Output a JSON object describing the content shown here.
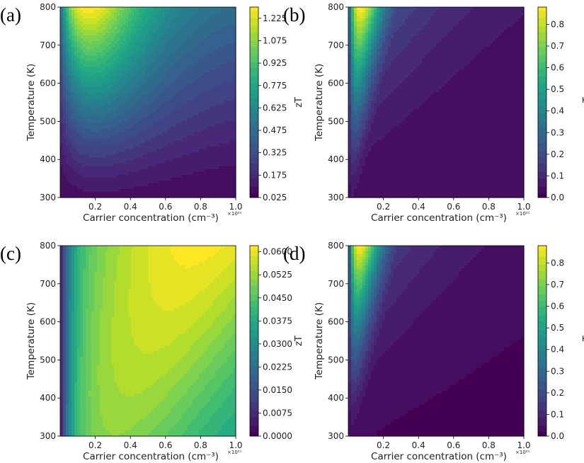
{
  "chart_data": [
    {
      "type": "heatmap",
      "panel_label": "(a)",
      "xlabel": "Carrier concentration (cm⁻³)",
      "ylabel": "Temperature (K)",
      "colorbar_label": "zT",
      "x_multiplier": "×10²¹",
      "xlim": [
        0.0,
        1.0
      ],
      "ylim": [
        300,
        800
      ],
      "x_ticks": [
        "0.2",
        "0.4",
        "0.6",
        "0.8",
        "1.0"
      ],
      "y_ticks": [
        "300",
        "400",
        "500",
        "600",
        "700",
        "800"
      ],
      "colorbar_range": [
        0.025,
        1.3
      ],
      "colorbar_ticks": [
        "0.025",
        "0.175",
        "0.325",
        "0.475",
        "0.625",
        "0.775",
        "0.925",
        "1.075",
        "1.225"
      ],
      "colormap": "viridis",
      "peak": {
        "x": 0.18,
        "y": 800,
        "value": 1.3
      }
    },
    {
      "type": "heatmap",
      "panel_label": "(b)",
      "xlabel": "Carrier concentration (cm⁻³)",
      "ylabel": "Temperature (K)",
      "colorbar_label": "zT",
      "x_multiplier": "×10²¹",
      "xlim": [
        0.0,
        1.0
      ],
      "ylim": [
        300,
        800
      ],
      "x_ticks": [
        "0.2",
        "0.4",
        "0.6",
        "0.8",
        "1.0"
      ],
      "y_ticks": [
        "300",
        "400",
        "500",
        "600",
        "700",
        "800"
      ],
      "colorbar_range": [
        0.0,
        0.88
      ],
      "colorbar_ticks": [
        "0.0",
        "0.1",
        "0.2",
        "0.3",
        "0.4",
        "0.5",
        "0.6",
        "0.7",
        "0.8"
      ],
      "colormap": "viridis",
      "peak": {
        "x": 0.03,
        "y": 800,
        "value": 0.88
      }
    },
    {
      "type": "heatmap",
      "panel_label": "(c)",
      "xlabel": "Carrier concentration (cm⁻³)",
      "ylabel": "Temperature (K)",
      "colorbar_label": "zT",
      "x_multiplier": "×10²¹",
      "xlim": [
        0.0,
        1.0
      ],
      "ylim": [
        300,
        800
      ],
      "x_ticks": [
        "0.2",
        "0.4",
        "0.6",
        "0.8",
        "1.0"
      ],
      "y_ticks": [
        "300",
        "400",
        "500",
        "600",
        "700",
        "800"
      ],
      "colorbar_range": [
        0.0,
        0.062
      ],
      "colorbar_ticks": [
        "0.0000",
        "0.0075",
        "0.0150",
        "0.0225",
        "0.0300",
        "0.0375",
        "0.0450",
        "0.0525",
        "0.0600"
      ],
      "colormap": "viridis",
      "peak": {
        "x": 0.8,
        "y": 800,
        "value": 0.062
      }
    },
    {
      "type": "heatmap",
      "panel_label": "(d)",
      "xlabel": "Carrier concentration (cm⁻³)",
      "ylabel": "Temperature (K)",
      "colorbar_label": "zT",
      "x_multiplier": "×10²¹",
      "xlim": [
        0.0,
        1.0
      ],
      "ylim": [
        300,
        800
      ],
      "x_ticks": [
        "0.2",
        "0.4",
        "0.6",
        "0.8",
        "1.0"
      ],
      "y_ticks": [
        "300",
        "400",
        "500",
        "600",
        "700",
        "800"
      ],
      "colorbar_range": [
        0.0,
        0.88
      ],
      "colorbar_ticks": [
        "0.0",
        "0.1",
        "0.2",
        "0.3",
        "0.4",
        "0.5",
        "0.6",
        "0.7",
        "0.8"
      ],
      "colormap": "viridis",
      "peak": {
        "x": 0.03,
        "y": 800,
        "value": 0.88
      }
    }
  ]
}
